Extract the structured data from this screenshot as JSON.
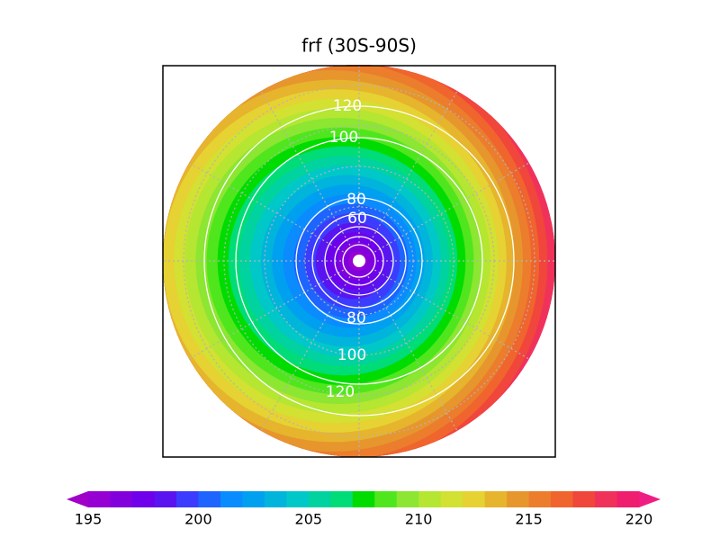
{
  "title": "frf (30S-90S)",
  "contour_labels": [
    120,
    100,
    80,
    60,
    80,
    100,
    120
  ],
  "colorbar": {
    "ticks": [
      195,
      200,
      205,
      210,
      215,
      220
    ],
    "lower_color": "#a000c8",
    "upper_color": "#f01e82",
    "colors": [
      "#9600d2",
      "#8200dc",
      "#6e00eb",
      "#5a14f0",
      "#3c3cff",
      "#1e64ff",
      "#0a8cff",
      "#00a0f0",
      "#00b4dc",
      "#00c8c8",
      "#00d2a0",
      "#00dc78",
      "#00dc00",
      "#50e61e",
      "#8ce632",
      "#b4e632",
      "#d2e132",
      "#e6d232",
      "#e6b42d",
      "#e6962d",
      "#eb7d2d",
      "#f0642d",
      "#f0463c",
      "#f0325a",
      "#f01e6e"
    ]
  }
}
